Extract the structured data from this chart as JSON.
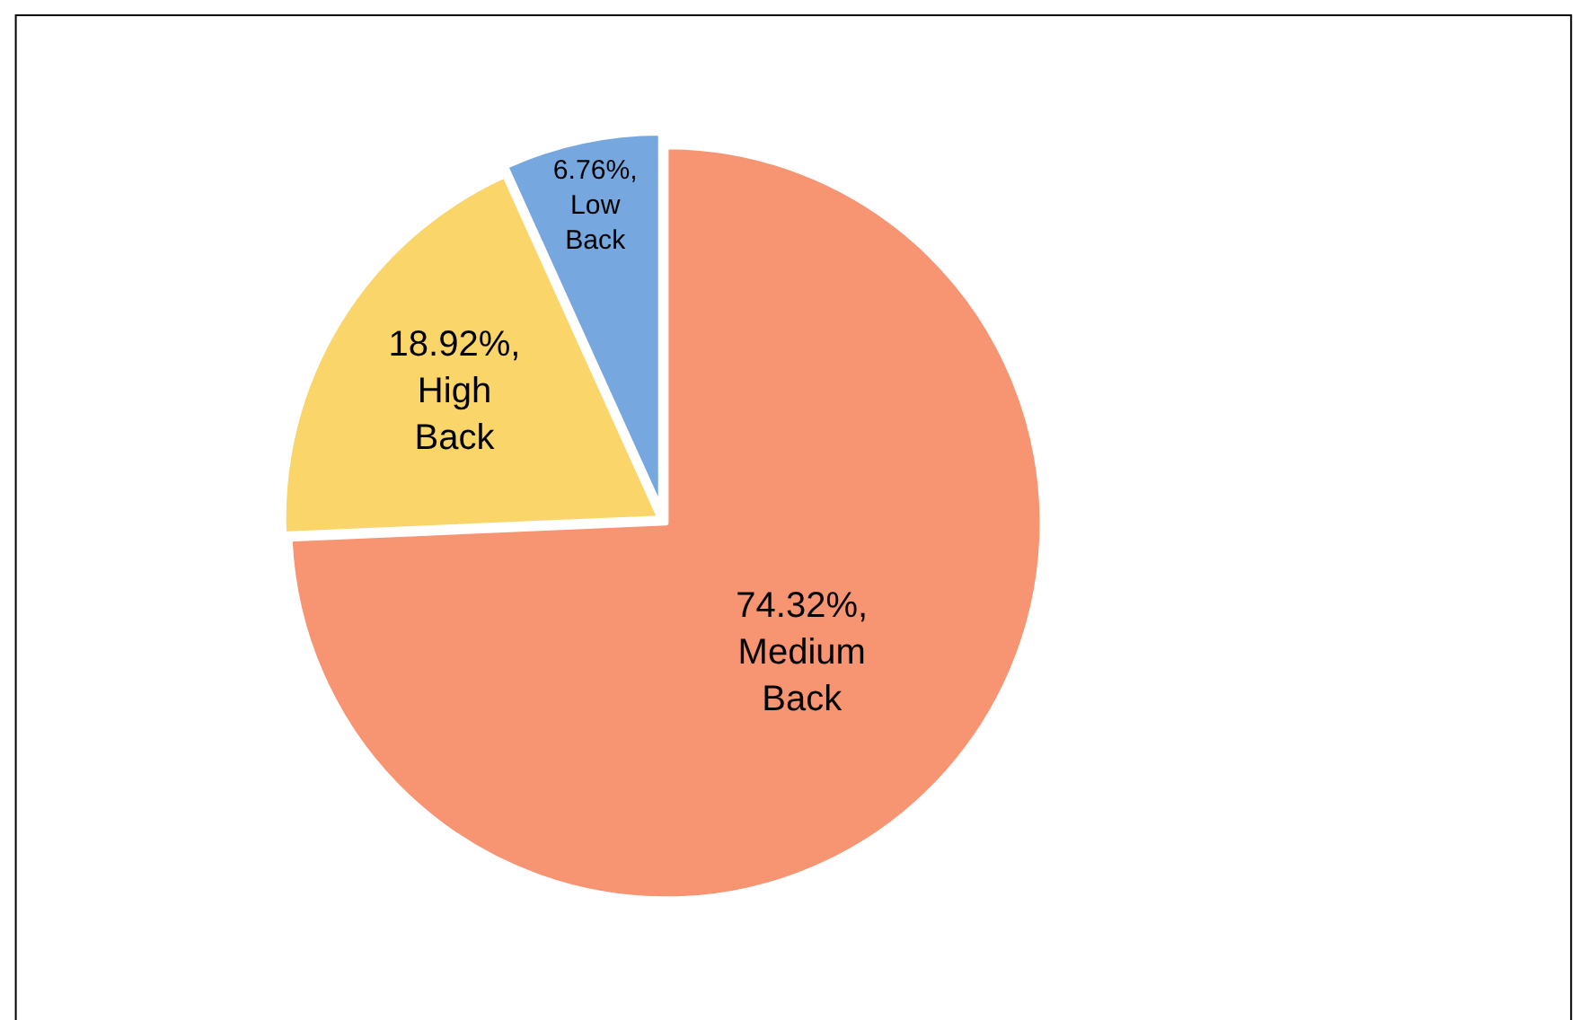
{
  "chart_data": {
    "type": "pie",
    "categories": [
      "Medium Back",
      "High Back",
      "Low Back"
    ],
    "values": [
      74.32,
      18.92,
      6.76
    ],
    "value_labels": [
      "74.32%,",
      "18.92%,",
      "6.76%,"
    ],
    "colors": [
      "#f79471",
      "#fad56a",
      "#76a7de"
    ],
    "legend": false
  }
}
